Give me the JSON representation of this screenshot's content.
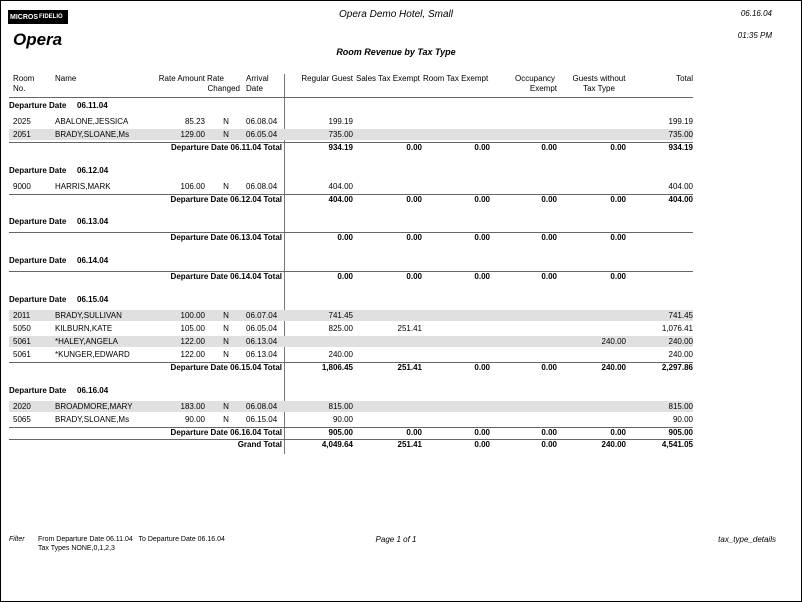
{
  "header": {
    "logo_left": "MICROS",
    "logo_right": "FIDELIO",
    "brand": "Opera",
    "hotel": "Opera Demo Hotel, Small",
    "date": "06.16.04",
    "time": "01:35 PM",
    "title": "Room Revenue by Tax Type"
  },
  "columns": [
    [
      "Room",
      "No."
    ],
    [
      "Name"
    ],
    [
      "Rate Amount"
    ],
    [
      "Rate",
      "Changed"
    ],
    [
      "Arrival",
      "Date"
    ],
    [
      "Regular Guest"
    ],
    [
      "Sales Tax Exempt"
    ],
    [
      "Room Tax Exempt"
    ],
    [
      "Occupancy",
      "Exempt"
    ],
    [
      "Guests without",
      "Tax Type"
    ],
    [
      "Total"
    ]
  ],
  "groups": [
    {
      "label": "Departure Date",
      "date": "06.11.04",
      "rows": [
        {
          "cells": [
            "2025",
            "ABALONE,JESSICA",
            "85.23",
            "N",
            "06.08.04",
            "199.19",
            null,
            null,
            null,
            null,
            "199.19"
          ]
        },
        {
          "cells": [
            "2051",
            "BRADY,SLOANE,Ms",
            "129.00",
            "N",
            "06.05.04",
            "735.00",
            null,
            null,
            null,
            null,
            "735.00"
          ],
          "shaded": true
        }
      ],
      "total_label": "Departure Date 06.11.04 Total",
      "totals": [
        "934.19",
        "0.00",
        "0.00",
        "0.00",
        "0.00",
        "934.19"
      ]
    },
    {
      "label": "Departure Date",
      "date": "06.12.04",
      "rows": [
        {
          "cells": [
            "9000",
            "HARRIS,MARK",
            "106.00",
            "N",
            "06.08.04",
            "404.00",
            null,
            null,
            null,
            null,
            "404.00"
          ]
        }
      ],
      "total_label": "Departure Date 06.12.04 Total",
      "totals": [
        "404.00",
        "0.00",
        "0.00",
        "0.00",
        "0.00",
        "404.00"
      ]
    },
    {
      "label": "Departure Date",
      "date": "06.13.04",
      "rows": [],
      "total_label": "Departure Date 06.13.04 Total",
      "totals": [
        "0.00",
        "0.00",
        "0.00",
        "0.00",
        "0.00"
      ]
    },
    {
      "label": "Departure Date",
      "date": "06.14.04",
      "rows": [],
      "total_label": "Departure Date 06.14.04 Total",
      "totals": [
        "0.00",
        "0.00",
        "0.00",
        "0.00",
        "0.00"
      ]
    },
    {
      "label": "Departure Date",
      "date": "06.15.04",
      "rows": [
        {
          "cells": [
            "2011",
            "BRADY,SULLIVAN",
            "100.00",
            "N",
            "06.07.04",
            "741.45",
            null,
            null,
            null,
            null,
            "741.45"
          ],
          "shaded": true
        },
        {
          "cells": [
            "5050",
            "KILBURN,KATE",
            "105.00",
            "N",
            "06.05.04",
            "825.00",
            "251.41",
            null,
            null,
            null,
            "1,076.41"
          ]
        },
        {
          "cells": [
            "5061",
            "*HALEY,ANGELA",
            "122.00",
            "N",
            "06.13.04",
            null,
            null,
            null,
            null,
            "240.00",
            "240.00"
          ],
          "shaded": true
        },
        {
          "cells": [
            "5061",
            "*KUNGER,EDWARD",
            "122.00",
            "N",
            "06.13.04",
            "240.00",
            null,
            null,
            null,
            null,
            "240.00"
          ]
        }
      ],
      "total_label": "Departure Date 06.15.04 Total",
      "totals": [
        "1,806.45",
        "251.41",
        "0.00",
        "0.00",
        "240.00",
        "2,297.86"
      ]
    },
    {
      "label": "Departure Date",
      "date": "06.16.04",
      "rows": [
        {
          "cells": [
            "2020",
            "BROADMORE,MARY",
            "183.00",
            "N",
            "06.08.04",
            "815.00",
            null,
            null,
            null,
            null,
            "815.00"
          ],
          "shaded": true
        },
        {
          "cells": [
            "5065",
            "BRADY,SLOANE,Ms",
            "90.00",
            "N",
            "06.15.04",
            "90.00",
            null,
            null,
            null,
            null,
            "90.00"
          ]
        }
      ],
      "total_label": "Departure Date 06.16.04 Total",
      "totals": [
        "905.00",
        "0.00",
        "0.00",
        "0.00",
        "0.00",
        "905.00"
      ]
    }
  ],
  "grand_total": {
    "label": "Grand Total",
    "totals": [
      "4,049.64",
      "251.41",
      "0.00",
      "0.00",
      "240.00",
      "4,541.05"
    ]
  },
  "footer": {
    "filter_label": "Filter",
    "filter_line1": "From Departure Date 06.11.04   To Departure Date 06.16.04",
    "filter_line2": "Tax Types NONE,0,1,2,3",
    "page": "Page 1 of 1",
    "report": "tax_type_details"
  }
}
